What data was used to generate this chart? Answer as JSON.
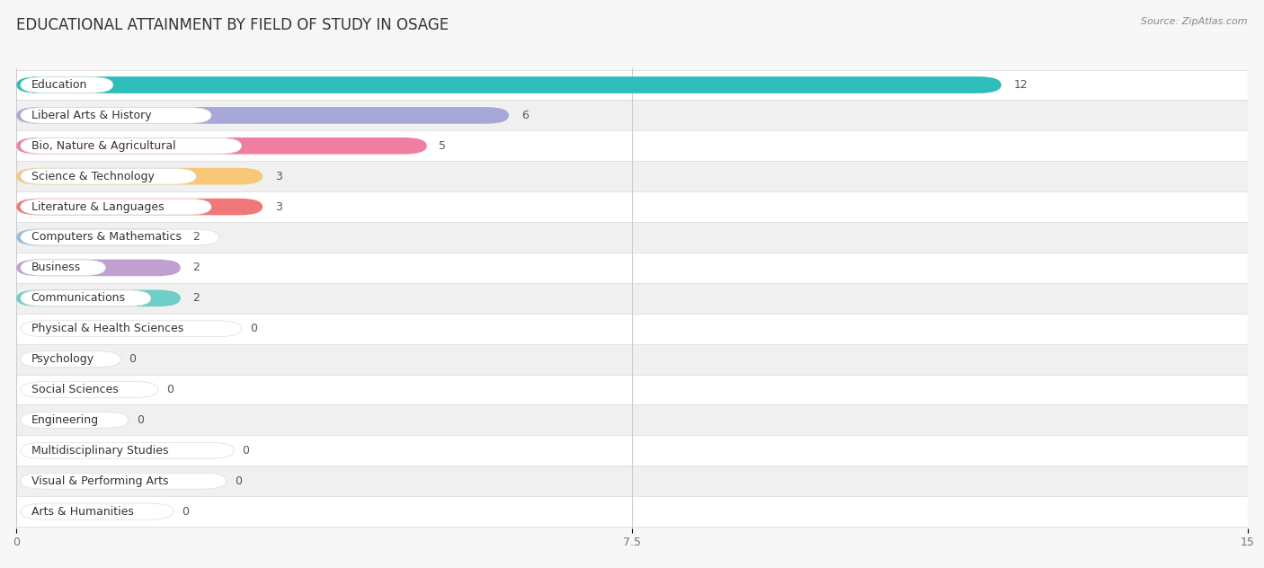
{
  "title": "EDUCATIONAL ATTAINMENT BY FIELD OF STUDY IN OSAGE",
  "source": "Source: ZipAtlas.com",
  "categories": [
    "Education",
    "Liberal Arts & History",
    "Bio, Nature & Agricultural",
    "Science & Technology",
    "Literature & Languages",
    "Computers & Mathematics",
    "Business",
    "Communications",
    "Physical & Health Sciences",
    "Psychology",
    "Social Sciences",
    "Engineering",
    "Multidisciplinary Studies",
    "Visual & Performing Arts",
    "Arts & Humanities"
  ],
  "values": [
    12,
    6,
    5,
    3,
    3,
    2,
    2,
    2,
    0,
    0,
    0,
    0,
    0,
    0,
    0
  ],
  "colors": [
    "#2DBDBA",
    "#A8A8D8",
    "#F07EA0",
    "#F8C878",
    "#F07878",
    "#88BFEA",
    "#C0A0D0",
    "#6ECEC8",
    "#A8A8D8",
    "#F888A8",
    "#F8C888",
    "#F09898",
    "#90B8EC",
    "#C8B0D8",
    "#6ECECE"
  ],
  "label_pill_color": "#ffffff",
  "xlim": [
    0,
    15
  ],
  "xticks": [
    0,
    7.5,
    15
  ],
  "background_color": "#f7f7f7",
  "row_colors": [
    "#ffffff",
    "#f0f0f0"
  ],
  "title_fontsize": 12,
  "label_fontsize": 9,
  "value_fontsize": 9,
  "source_fontsize": 8
}
